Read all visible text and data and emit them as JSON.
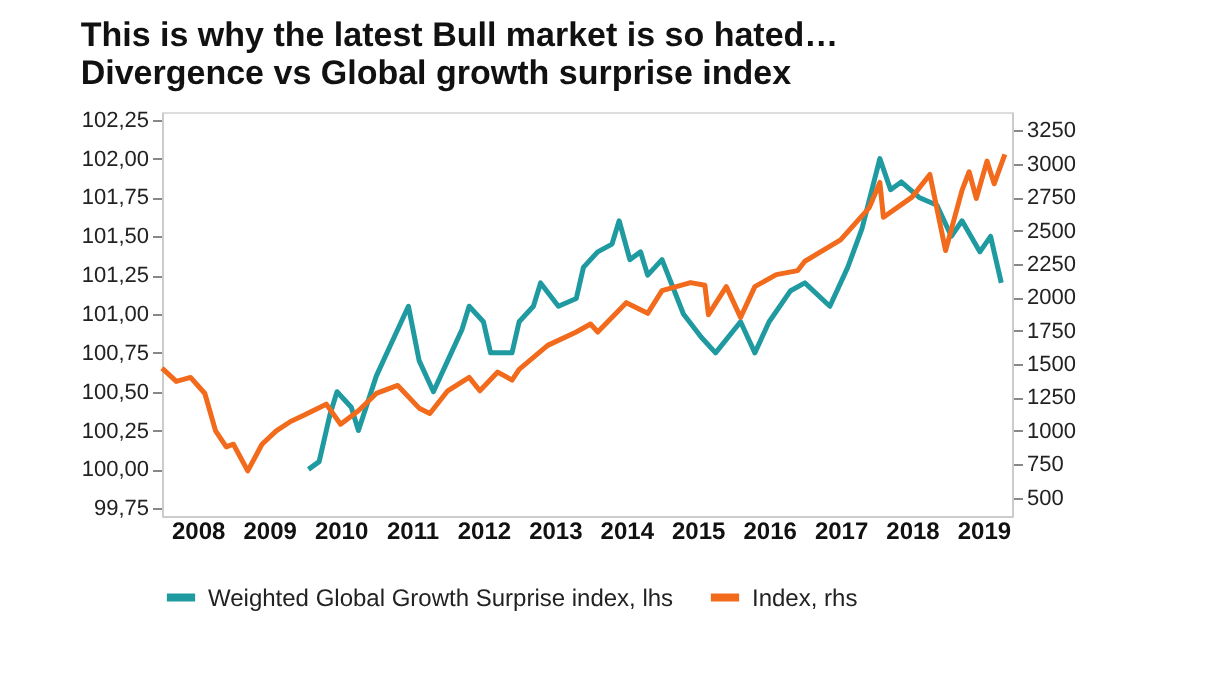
{
  "chart_data": {
    "type": "line",
    "title": "This is why the latest Bull market is so hated…",
    "subtitle": "Divergence vs Global growth surprise index",
    "xlim": [
      2008,
      2019.9
    ],
    "xticks": [
      {
        "value": 2008.5,
        "label": "2008"
      },
      {
        "value": 2009.5,
        "label": "2009"
      },
      {
        "value": 2010.5,
        "label": "2010"
      },
      {
        "value": 2011.5,
        "label": "2011"
      },
      {
        "value": 2012.5,
        "label": "2012"
      },
      {
        "value": 2013.5,
        "label": "2013"
      },
      {
        "value": 2014.5,
        "label": "2014"
      },
      {
        "value": 2015.5,
        "label": "2015"
      },
      {
        "value": 2016.5,
        "label": "2016"
      },
      {
        "value": 2017.5,
        "label": "2017"
      },
      {
        "value": 2018.5,
        "label": "2018"
      },
      {
        "value": 2019.5,
        "label": "2019"
      }
    ],
    "ylim": [
      99.7,
      102.3
    ],
    "yticks": [
      {
        "value": 99.75,
        "label": "99,75"
      },
      {
        "value": 100,
        "label": "100,00"
      },
      {
        "value": 100.25,
        "label": "100,25"
      },
      {
        "value": 100.5,
        "label": "100,50"
      },
      {
        "value": 100.75,
        "label": "100,75"
      },
      {
        "value": 101,
        "label": "101,00"
      },
      {
        "value": 101.25,
        "label": "101,25"
      },
      {
        "value": 101.5,
        "label": "101,50"
      },
      {
        "value": 101.75,
        "label": "101,75"
      },
      {
        "value": 102,
        "label": "102,00"
      },
      {
        "value": 102.25,
        "label": "102,25"
      }
    ],
    "y2lim": [
      362.5,
      3387.5
    ],
    "y2ticks": [
      500,
      750,
      1000,
      1250,
      1500,
      1750,
      2000,
      2250,
      2500,
      2750,
      3000,
      3250
    ],
    "grid": false,
    "legend": "bottom",
    "line_style": "solid",
    "series": [
      {
        "name": "Weighted Global Growth Surprise index, lhs",
        "color": "#1f9aa0",
        "x": [
          2010.05,
          2010.2,
          2010.35,
          2010.45,
          2010.65,
          2010.75,
          2011.0,
          2011.2,
          2011.35,
          2011.45,
          2011.6,
          2011.8,
          2012.0,
          2012.2,
          2012.3,
          2012.5,
          2012.6,
          2012.9,
          2013.0,
          2013.2,
          2013.3,
          2013.55,
          2013.8,
          2013.9,
          2014.1,
          2014.3,
          2014.4,
          2014.55,
          2014.7,
          2014.8,
          2015.0,
          2015.3,
          2015.55,
          2015.75,
          2016.1,
          2016.3,
          2016.5,
          2016.8,
          2017.0,
          2017.35,
          2017.6,
          2017.8,
          2018.05,
          2018.2,
          2018.35,
          2018.6,
          2018.85,
          2019.05,
          2019.2,
          2019.45,
          2019.6,
          2019.75
        ],
        "values": [
          100.0,
          100.05,
          100.35,
          100.5,
          100.4,
          100.25,
          100.6,
          100.8,
          100.95,
          101.05,
          100.7,
          100.5,
          100.7,
          100.9,
          101.05,
          100.95,
          100.75,
          100.75,
          100.95,
          101.05,
          101.2,
          101.05,
          101.1,
          101.3,
          101.4,
          101.45,
          101.6,
          101.35,
          101.4,
          101.25,
          101.35,
          101.0,
          100.85,
          100.75,
          100.95,
          100.75,
          100.95,
          101.15,
          101.2,
          101.05,
          101.3,
          101.55,
          102.0,
          101.8,
          101.85,
          101.75,
          101.7,
          101.5,
          101.6,
          101.4,
          101.5,
          101.2
        ]
      },
      {
        "name": "Index, rhs",
        "color": "#f26a1b",
        "axis": "y2",
        "x": [
          2008.0,
          2008.2,
          2008.4,
          2008.6,
          2008.75,
          2008.9,
          2009.0,
          2009.2,
          2009.4,
          2009.6,
          2009.8,
          2010.0,
          2010.3,
          2010.5,
          2010.75,
          2011.0,
          2011.3,
          2011.6,
          2011.75,
          2012.0,
          2012.3,
          2012.45,
          2012.7,
          2012.9,
          2013.0,
          2013.4,
          2013.8,
          2014.0,
          2014.1,
          2014.5,
          2014.8,
          2015.0,
          2015.4,
          2015.6,
          2015.65,
          2015.9,
          2016.1,
          2016.3,
          2016.6,
          2016.9,
          2017.0,
          2017.5,
          2017.9,
          2018.05,
          2018.1,
          2018.5,
          2018.75,
          2018.97,
          2019.2,
          2019.3,
          2019.4,
          2019.55,
          2019.65,
          2019.8
        ],
        "values": [
          1470,
          1370,
          1400,
          1280,
          1000,
          880,
          900,
          700,
          900,
          1000,
          1070,
          1120,
          1200,
          1050,
          1150,
          1280,
          1340,
          1170,
          1130,
          1300,
          1400,
          1300,
          1440,
          1380,
          1460,
          1640,
          1740,
          1800,
          1740,
          1960,
          1880,
          2050,
          2110,
          2090,
          1870,
          2080,
          1850,
          2080,
          2170,
          2200,
          2270,
          2430,
          2670,
          2860,
          2600,
          2750,
          2920,
          2350,
          2800,
          2940,
          2740,
          3020,
          2850,
          3070
        ]
      }
    ]
  }
}
